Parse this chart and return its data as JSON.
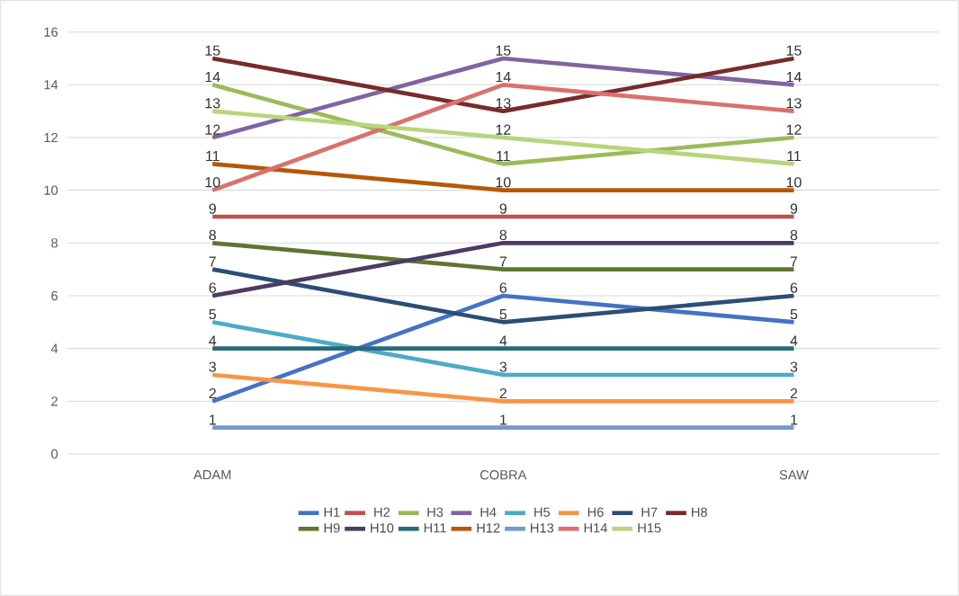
{
  "chart_data": {
    "type": "line",
    "categories": [
      "ADAM",
      "COBRA",
      "SAW"
    ],
    "series": [
      {
        "name": "H1",
        "color": "#4472c4",
        "values": [
          2,
          6,
          5
        ]
      },
      {
        "name": "H2",
        "color": "#c0504d",
        "values": [
          9,
          9,
          9
        ]
      },
      {
        "name": "H3",
        "color": "#9bbb59",
        "values": [
          14,
          11,
          12
        ]
      },
      {
        "name": "H4",
        "color": "#8064a2",
        "values": [
          12,
          15,
          14
        ]
      },
      {
        "name": "H5",
        "color": "#4bacc6",
        "values": [
          5,
          3,
          3
        ]
      },
      {
        "name": "H6",
        "color": "#f79646",
        "values": [
          3,
          2,
          2
        ]
      },
      {
        "name": "H7",
        "color": "#2c4d75",
        "values": [
          7,
          5,
          6
        ]
      },
      {
        "name": "H8",
        "color": "#772c2a",
        "values": [
          15,
          13,
          15
        ]
      },
      {
        "name": "H9",
        "color": "#5f7530",
        "values": [
          8,
          7,
          7
        ]
      },
      {
        "name": "H10",
        "color": "#4d3b62",
        "values": [
          6,
          8,
          8
        ]
      },
      {
        "name": "H11",
        "color": "#276a7c",
        "values": [
          4,
          4,
          4
        ]
      },
      {
        "name": "H12",
        "color": "#b65708",
        "values": [
          11,
          10,
          10
        ]
      },
      {
        "name": "H13",
        "color": "#729aca",
        "values": [
          1,
          1,
          1
        ]
      },
      {
        "name": "H14",
        "color": "#d9716e",
        "values": [
          10,
          14,
          13
        ]
      },
      {
        "name": "H15",
        "color": "#b7d57a",
        "values": [
          13,
          12,
          11
        ]
      }
    ],
    "ylim": [
      0,
      16
    ],
    "yticks": [
      0,
      2,
      4,
      6,
      8,
      10,
      12,
      14,
      16
    ],
    "grid": "y",
    "legend": "bottom",
    "marker": "none",
    "line_style": "solid",
    "data_labels": true
  }
}
